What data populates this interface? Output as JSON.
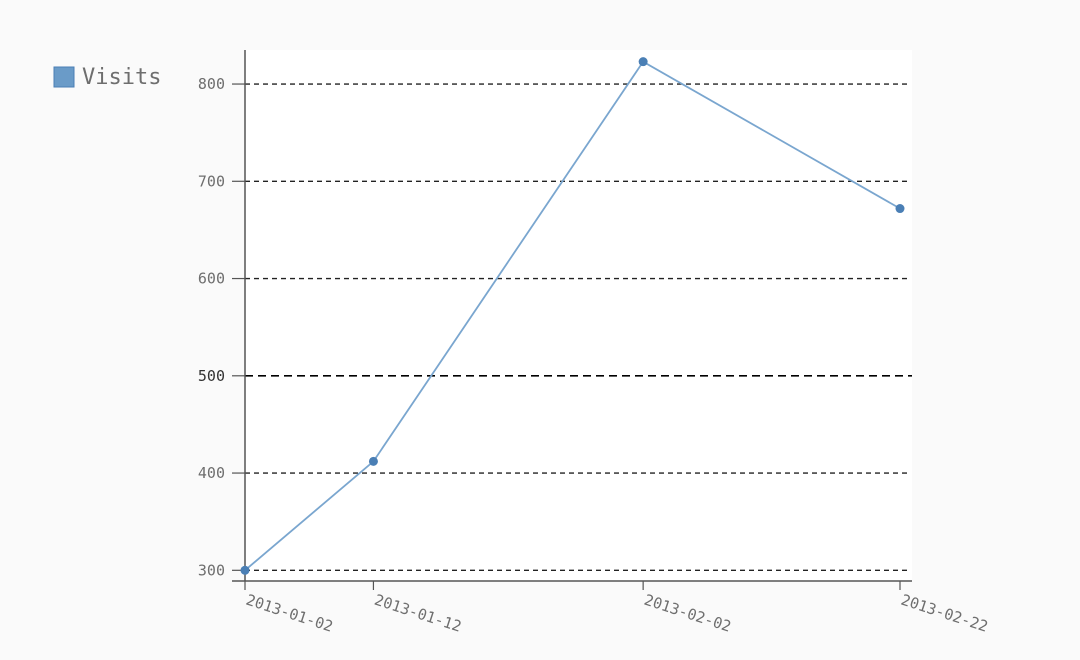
{
  "chart_data": {
    "type": "line",
    "x": [
      "2013-01-02",
      "2013-01-12",
      "2013-02-02",
      "2013-02-22"
    ],
    "series": [
      {
        "name": "Visits",
        "values": [
          300,
          412,
          823,
          672
        ]
      }
    ],
    "ylim": [
      289,
      835
    ],
    "yticks": [
      {
        "value": 300,
        "label": "300"
      },
      {
        "value": 400,
        "label": "400"
      },
      {
        "value": 500,
        "label": "500"
      },
      {
        "value": 600,
        "label": "600"
      },
      {
        "value": 700,
        "label": "700"
      },
      {
        "value": 800,
        "label": "800"
      }
    ],
    "grid": "horizontal dashed",
    "legend_position": "top-left",
    "colors": {
      "series": "#4a7fb5",
      "line": "#7aa6cf",
      "legend_fill": "#6a9bc8",
      "plot_background": "#ffffff"
    }
  }
}
